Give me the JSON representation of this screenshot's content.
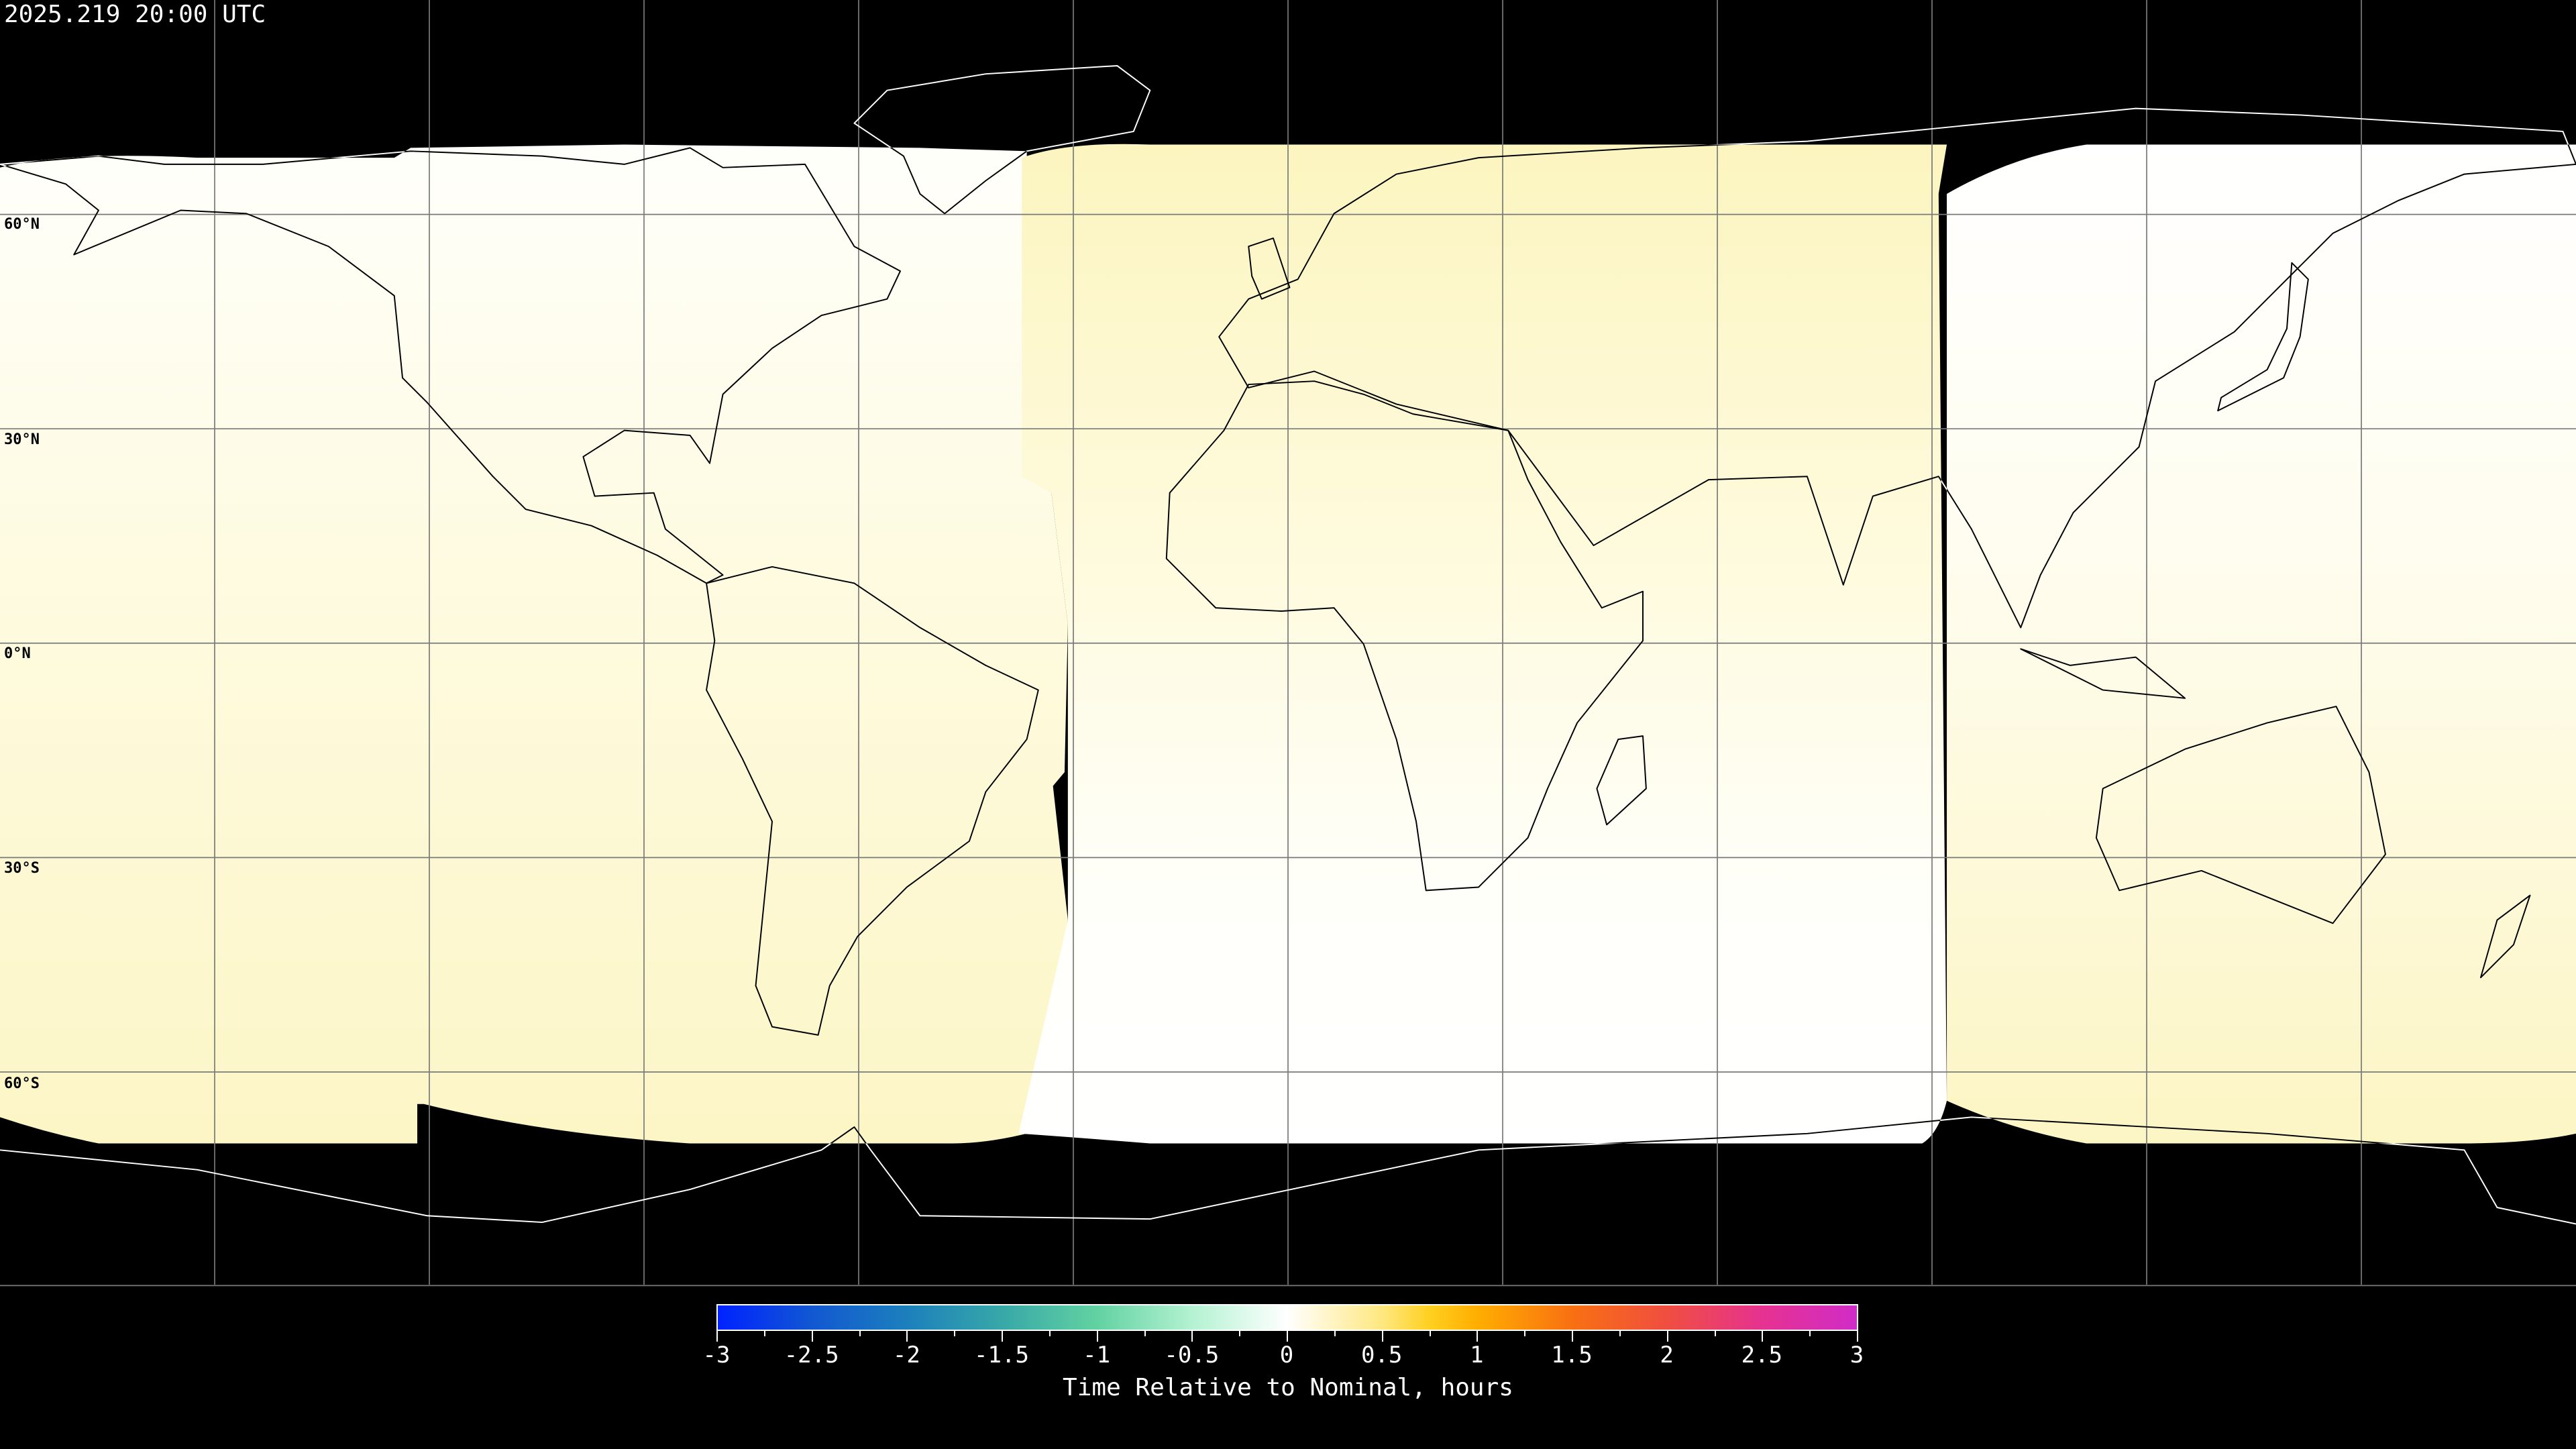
{
  "header": {
    "timestamp": "2025.219 20:00 UTC"
  },
  "map": {
    "projection": "equirectangular",
    "grid_spacing_deg": 30,
    "lat_labels": [
      "60°N",
      "30°N",
      "0°N",
      "30°S",
      "60°S"
    ],
    "background_color": "#000000",
    "grid_color": "#7a7a7a"
  },
  "colorbar": {
    "min": -3,
    "max": 3,
    "tick_labels": [
      "-3",
      "-2.5",
      "-2",
      "-1.5",
      "-1",
      "-0.5",
      "0",
      "0.5",
      "1",
      "1.5",
      "2",
      "2.5",
      "3"
    ],
    "label": "Time Relative to Nominal, hours",
    "stops": [
      {
        "value": -3,
        "color": "#0022ff"
      },
      {
        "value": -2.5,
        "color": "#1258d2"
      },
      {
        "value": -2,
        "color": "#1c80bc"
      },
      {
        "value": -1.5,
        "color": "#38a8a8"
      },
      {
        "value": -1,
        "color": "#62d2a2"
      },
      {
        "value": -0.5,
        "color": "#b4f2d2"
      },
      {
        "value": 0,
        "color": "#ffffff"
      },
      {
        "value": 0.5,
        "color": "#ffe880"
      },
      {
        "value": 0.75,
        "color": "#ffd020"
      },
      {
        "value": 1,
        "color": "#ffae00"
      },
      {
        "value": 1.5,
        "color": "#f87012"
      },
      {
        "value": 2,
        "color": "#f04e40"
      },
      {
        "value": 2.5,
        "color": "#e63290"
      },
      {
        "value": 3,
        "color": "#d02cc8"
      }
    ]
  }
}
